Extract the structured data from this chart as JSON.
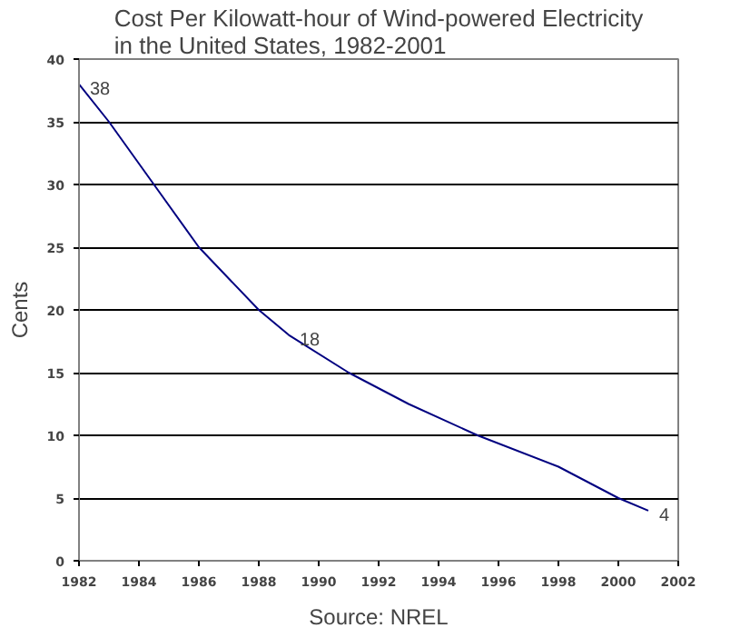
{
  "chart_data": {
    "type": "line",
    "title": "Cost Per Kilowatt-hour of Wind-powered Electricity\nin the United States, 1982-2001",
    "ylabel": "Cents",
    "annotations": [
      "Source: NREL"
    ],
    "x": [
      1982,
      1983,
      1984.5,
      1986,
      1988,
      1989,
      1991,
      1993,
      1995.3,
      1998,
      2000,
      2001
    ],
    "series": [
      {
        "color": "#000080",
        "values": [
          38,
          35,
          30,
          25,
          20,
          18,
          15,
          12.5,
          10,
          7.5,
          5,
          4
        ],
        "value_labels": [
          "38",
          null,
          null,
          null,
          null,
          "18",
          null,
          null,
          null,
          null,
          null,
          "4"
        ]
      }
    ],
    "xlim": [
      1982,
      2002
    ],
    "xticks": [
      1982,
      1984,
      1986,
      1988,
      1990,
      1992,
      1994,
      1996,
      1998,
      2000,
      2002
    ],
    "ylim": [
      0,
      40
    ],
    "yticks": [
      0,
      5,
      10,
      15,
      20,
      25,
      30,
      35,
      40
    ],
    "grid": "y",
    "marker": "none",
    "line_style": "solid"
  }
}
